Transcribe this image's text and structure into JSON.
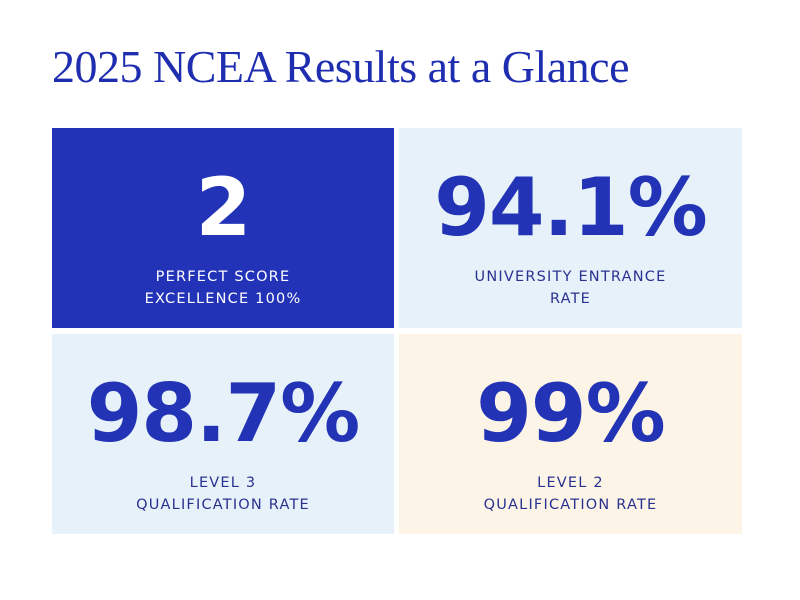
{
  "header": {
    "title": "2025 NCEA Results at a Glance"
  },
  "cards": [
    {
      "value": "2",
      "label": [
        "PERFECT SCORE",
        "EXCELLENCE 100%"
      ]
    },
    {
      "value": "94.1%",
      "label": [
        "UNIVERSITY ENTRANCE",
        "RATE"
      ]
    },
    {
      "value": "98.7%",
      "label": [
        "LEVEL 3",
        "QUALIFICATION RATE"
      ]
    },
    {
      "value": "99%",
      "label": [
        "LEVEL 2",
        "QUALIFICATION RATE"
      ]
    }
  ]
}
